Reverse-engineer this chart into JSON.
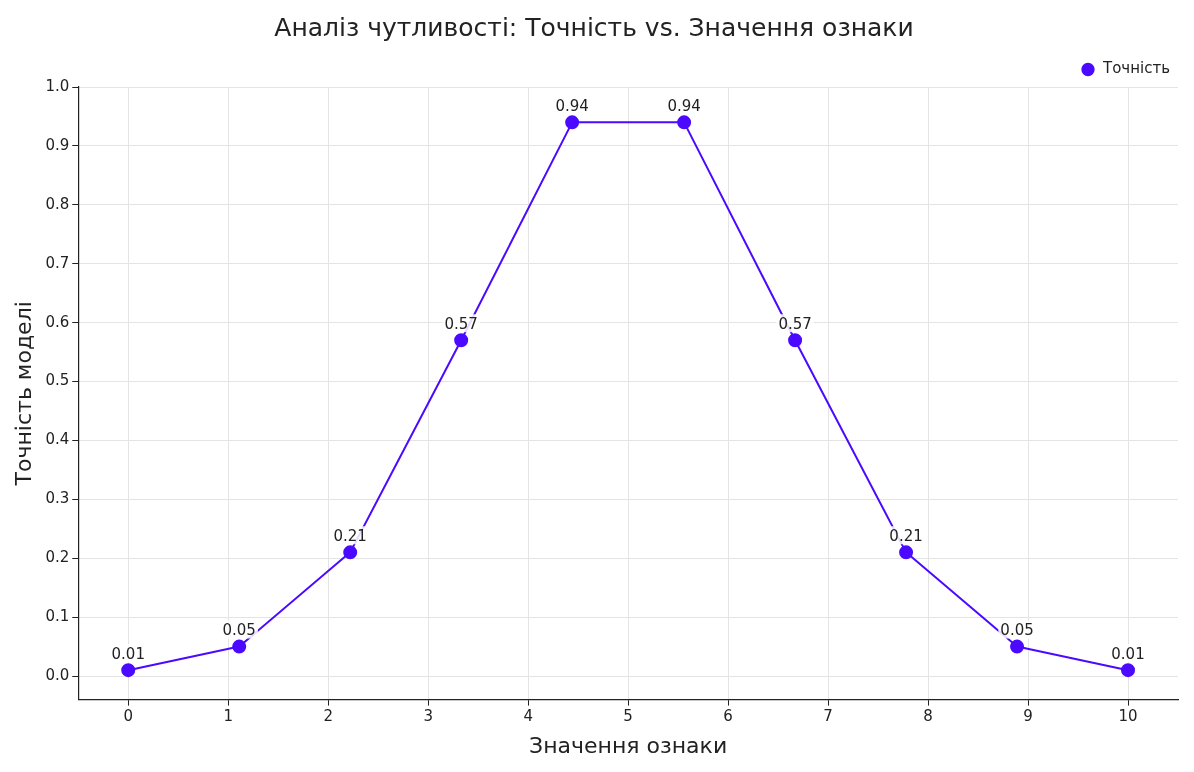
{
  "chart_data": {
    "type": "line",
    "title": "Аналіз чутливості: Точність vs. Значення ознаки",
    "xlabel": "Значення ознаки",
    "ylabel": "Точність моделі",
    "x": [
      0,
      1.11,
      2.22,
      3.33,
      4.44,
      5.56,
      6.67,
      7.78,
      8.89,
      10
    ],
    "series": [
      {
        "name": "Точність",
        "color": "#4b0aff",
        "values": [
          0.01,
          0.05,
          0.21,
          0.57,
          0.94,
          0.94,
          0.57,
          0.21,
          0.05,
          0.01
        ]
      }
    ],
    "xlim": [
      -0.5,
      10.5
    ],
    "xticks": [
      0,
      1,
      2,
      3,
      4,
      5,
      6,
      7,
      8,
      9,
      10
    ],
    "ylim": [
      -0.04,
      1.0
    ],
    "yticks": [
      {
        "value": 0,
        "label": "0.0"
      },
      0.1,
      0.2,
      0.3,
      0.4,
      0.5,
      0.6,
      0.7,
      0.8,
      0.9,
      {
        "value": 1,
        "label": "1.0"
      }
    ],
    "grid": true,
    "legend": "top right",
    "marker": "circle",
    "line_style": "solid",
    "data_labels": true
  }
}
